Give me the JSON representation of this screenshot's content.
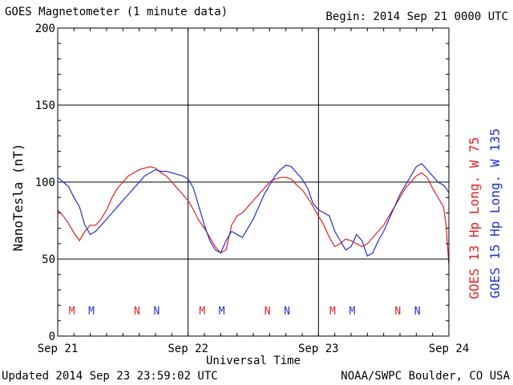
{
  "header": {
    "title": "GOES Magnetometer (1 minute data)",
    "begin": "Begin:  2014 Sep 21 0000 UTC"
  },
  "footer": {
    "updated": "Updated 2014 Sep 23 23:59:02 UTC",
    "credit": "NOAA/SWPC Boulder, CO USA"
  },
  "chart_data": {
    "type": "line",
    "xlabel": "Universal Time",
    "ylabel": "NanoTesla (nT)",
    "ylim": [
      0,
      200
    ],
    "yticks": [
      0,
      50,
      100,
      150,
      200
    ],
    "xlim_hours": [
      0,
      72
    ],
    "xticks": [
      {
        "hour": 0,
        "label": "Sep 21"
      },
      {
        "hour": 24,
        "label": "Sep 22"
      },
      {
        "hour": 48,
        "label": "Sep 23"
      },
      {
        "hour": 72,
        "label": "Sep 24"
      }
    ],
    "grid": true,
    "legend": "right-vertical",
    "series": [
      {
        "name": "GOES 13 Hp  Long. W 75",
        "color": "#e02020",
        "x": [
          0,
          1,
          2,
          3,
          4,
          5,
          6,
          7,
          8,
          9,
          10,
          11,
          12,
          13,
          14,
          15,
          16,
          17,
          18,
          19,
          20,
          21,
          22,
          23,
          24,
          25,
          26,
          27,
          28,
          29,
          30,
          31,
          32,
          33,
          34,
          35,
          36,
          37,
          38,
          39,
          40,
          41,
          42,
          43,
          44,
          45,
          46,
          47,
          48,
          49,
          50,
          51,
          52,
          53,
          54,
          55,
          56,
          57,
          58,
          59,
          60,
          61,
          62,
          63,
          64,
          65,
          66,
          67,
          68,
          69,
          70,
          71,
          71.5,
          72
        ],
        "y": [
          82,
          78,
          73,
          67,
          62,
          68,
          72,
          72,
          76,
          82,
          90,
          96,
          100,
          104,
          106,
          108,
          109,
          110,
          109,
          106,
          104,
          100,
          96,
          92,
          88,
          82,
          75,
          70,
          64,
          58,
          54,
          56,
          72,
          78,
          80,
          84,
          88,
          92,
          96,
          100,
          102,
          103,
          103,
          102,
          98,
          95,
          90,
          84,
          78,
          72,
          64,
          58,
          60,
          63,
          62,
          60,
          58,
          60,
          64,
          68,
          72,
          78,
          84,
          90,
          96,
          100,
          104,
          106,
          103,
          96,
          90,
          84,
          72,
          46
        ]
      },
      {
        "name": "GOES 15 Hp  Long. W 135",
        "color": "#2030d0",
        "x": [
          0,
          1,
          2,
          3,
          4,
          5,
          6,
          7,
          8,
          9,
          10,
          11,
          12,
          13,
          14,
          15,
          16,
          17,
          18,
          19,
          20,
          21,
          22,
          23,
          24,
          25,
          26,
          27,
          28,
          29,
          30,
          31,
          32,
          33,
          34,
          35,
          36,
          37,
          38,
          39,
          40,
          41,
          42,
          43,
          44,
          45,
          46,
          47,
          48,
          49,
          50,
          51,
          52,
          53,
          54,
          55,
          56,
          57,
          58,
          59,
          60,
          61,
          62,
          63,
          64,
          65,
          66,
          67,
          68,
          69,
          70,
          71,
          71.5,
          72
        ],
        "y": [
          103,
          100,
          97,
          90,
          84,
          72,
          66,
          68,
          72,
          76,
          80,
          84,
          88,
          92,
          96,
          100,
          104,
          106,
          108,
          107,
          107,
          106,
          105,
          104,
          102,
          96,
          84,
          72,
          62,
          56,
          54,
          62,
          68,
          66,
          64,
          70,
          76,
          84,
          92,
          98,
          104,
          108,
          111,
          110,
          106,
          102,
          96,
          86,
          82,
          80,
          78,
          68,
          62,
          56,
          58,
          66,
          62,
          52,
          54,
          62,
          68,
          76,
          84,
          92,
          98,
          104,
          110,
          112,
          108,
          104,
          100,
          98,
          96,
          93
        ]
      }
    ],
    "markers": [
      {
        "hour": 2.6,
        "label": "M",
        "series": "GOES 13 Hp  Long. W 75"
      },
      {
        "hour": 6.2,
        "label": "M",
        "series": "GOES 15 Hp  Long. W 135"
      },
      {
        "hour": 14.6,
        "label": "N",
        "series": "GOES 13 Hp  Long. W 75"
      },
      {
        "hour": 18.2,
        "label": "N",
        "series": "GOES 15 Hp  Long. W 135"
      },
      {
        "hour": 26.6,
        "label": "M",
        "series": "GOES 13 Hp  Long. W 75"
      },
      {
        "hour": 30.2,
        "label": "M",
        "series": "GOES 15 Hp  Long. W 135"
      },
      {
        "hour": 38.6,
        "label": "N",
        "series": "GOES 13 Hp  Long. W 75"
      },
      {
        "hour": 42.2,
        "label": "N",
        "series": "GOES 15 Hp  Long. W 135"
      },
      {
        "hour": 50.6,
        "label": "M",
        "series": "GOES 13 Hp  Long. W 75"
      },
      {
        "hour": 54.2,
        "label": "M",
        "series": "GOES 15 Hp  Long. W 135"
      },
      {
        "hour": 62.6,
        "label": "N",
        "series": "GOES 13 Hp  Long. W 75"
      },
      {
        "hour": 66.2,
        "label": "N",
        "series": "GOES 15 Hp  Long. W 135"
      }
    ]
  }
}
